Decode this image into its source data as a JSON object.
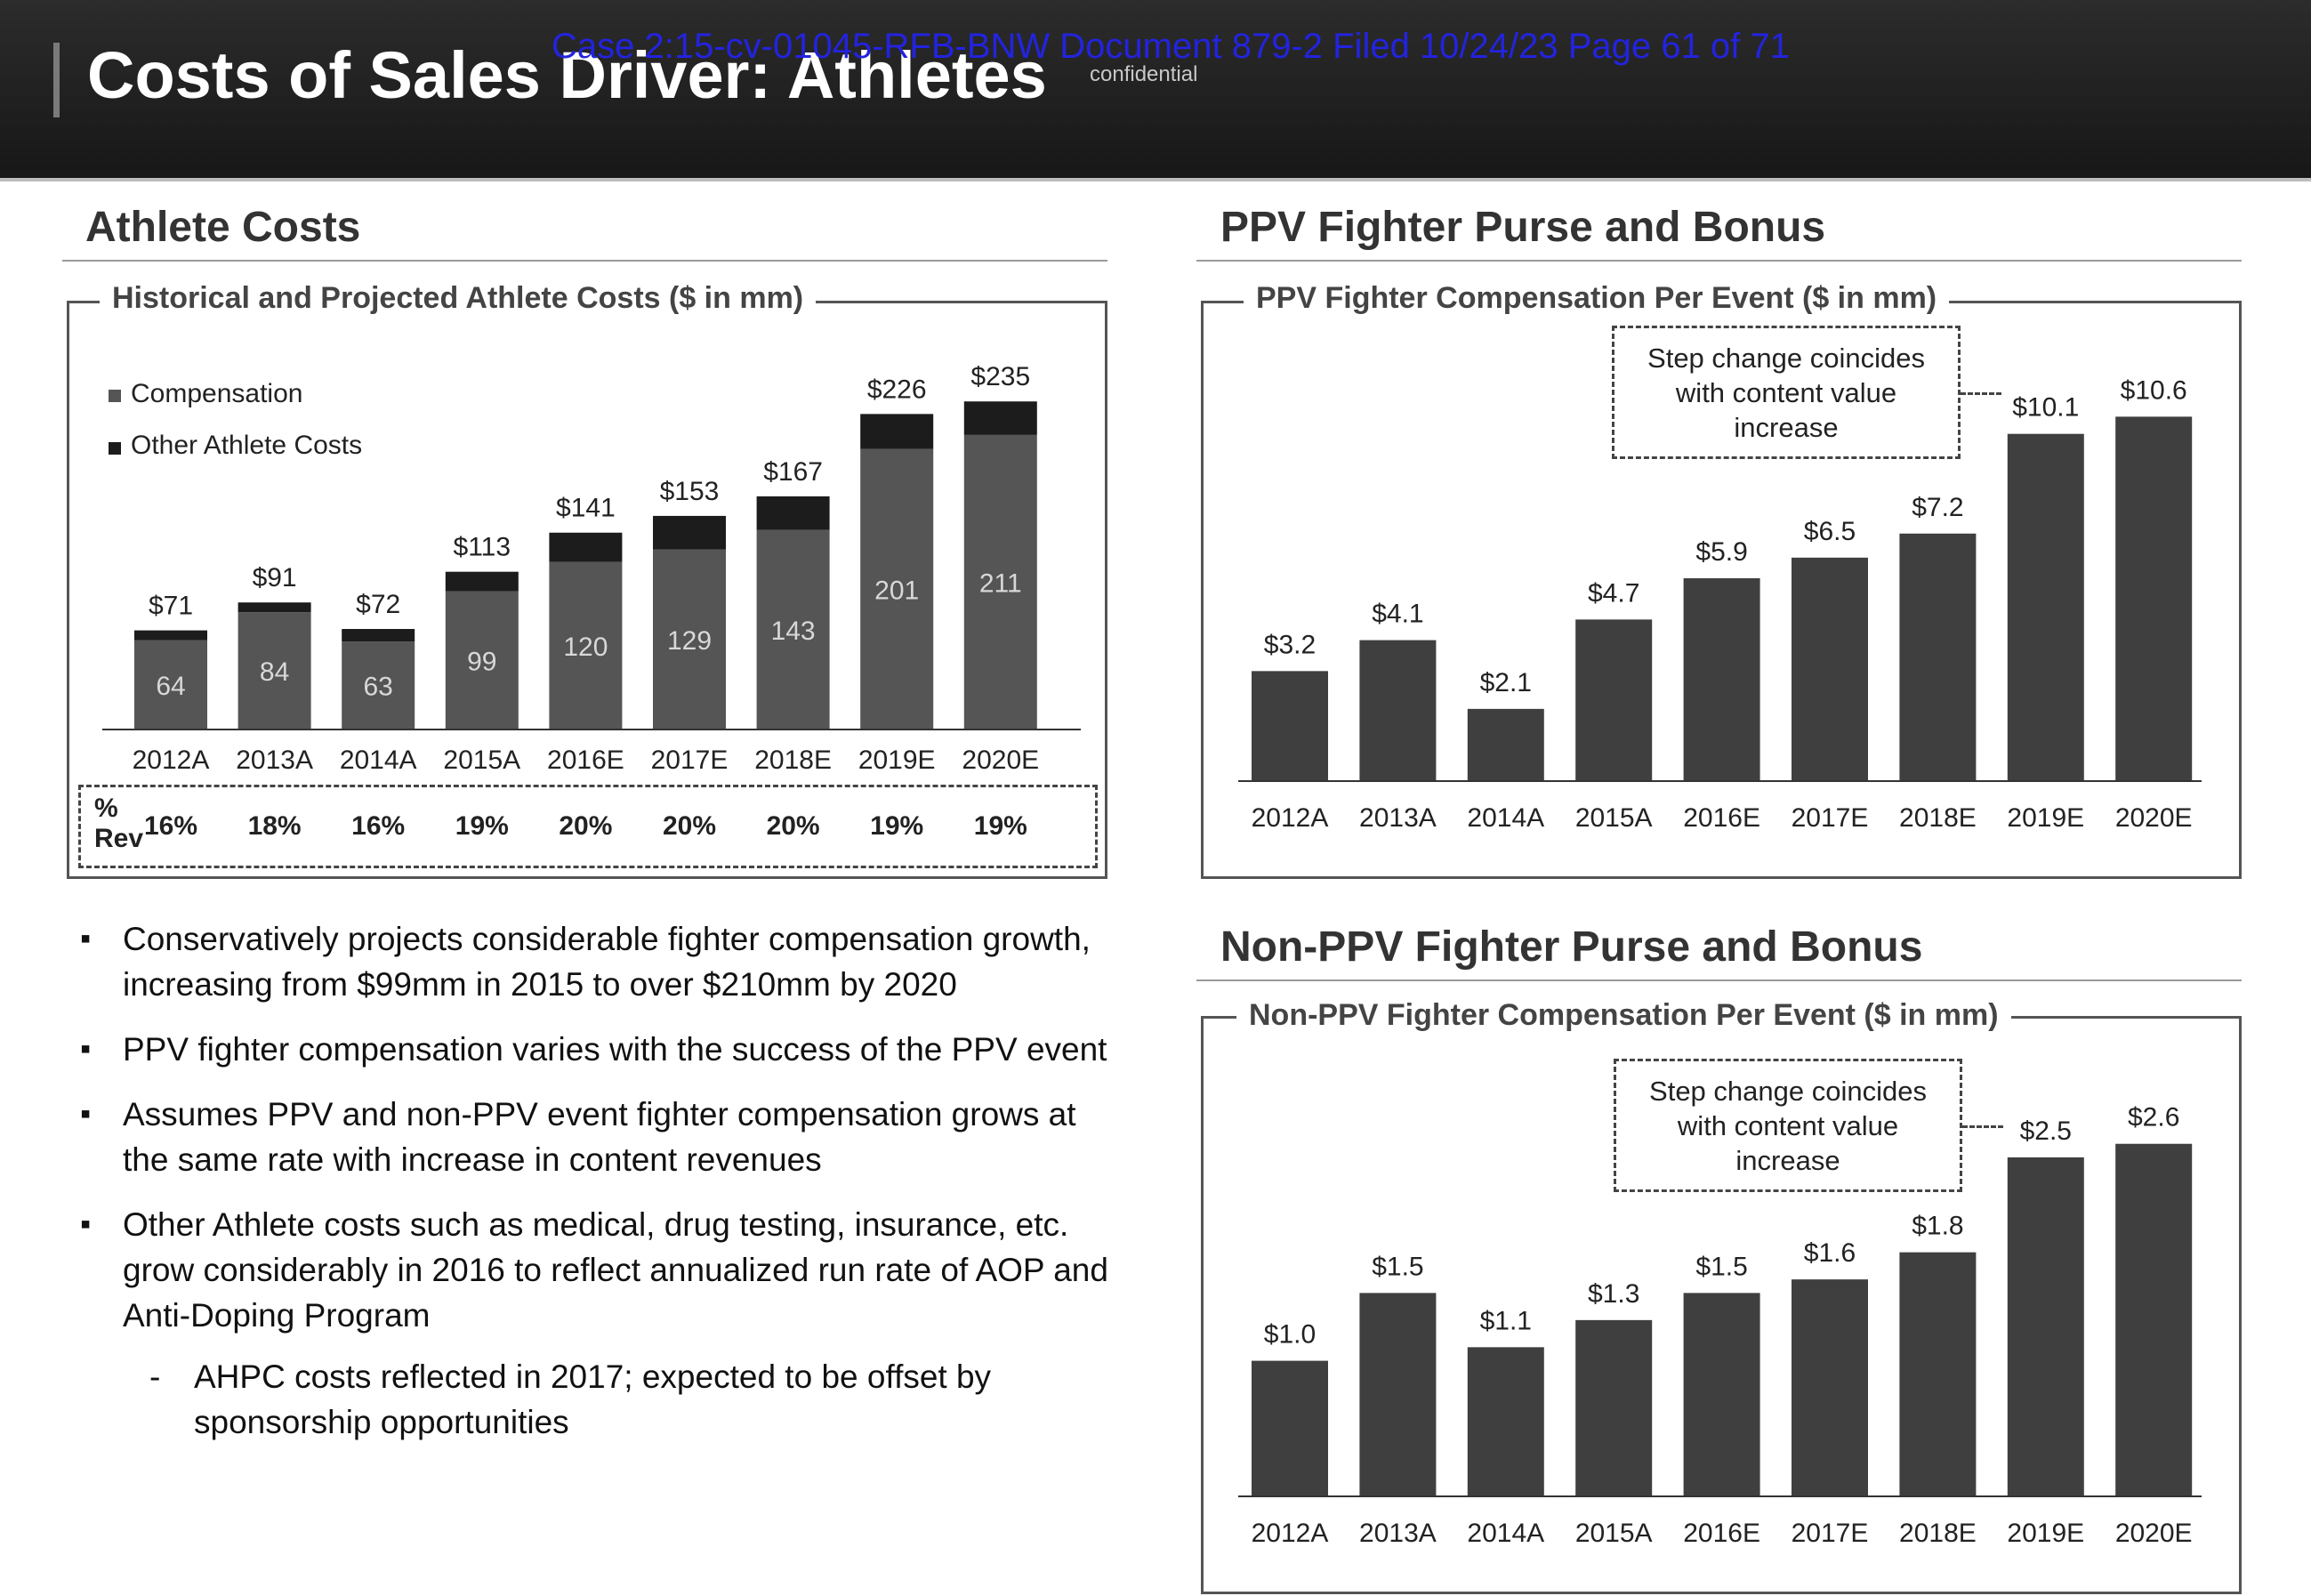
{
  "header": {
    "title": "Costs of Sales Driver: Athletes",
    "stamp": "Case 2:15-cv-01045-RFB-BNW   Document 879-2   Filed 10/24/23   Page 61 of 71",
    "confidential": "confidential"
  },
  "left_section": {
    "title": "Athlete Costs",
    "box_title": "Historical and Projected Athlete Costs ($ in mm)",
    "rev_label_1": "%",
    "rev_label_2": "Rev",
    "rev_pct": [
      "16%",
      "18%",
      "16%",
      "19%",
      "20%",
      "20%",
      "20%",
      "19%",
      "19%"
    ]
  },
  "ppv_section": {
    "title": "PPV Fighter Purse and Bonus",
    "box_title": "PPV Fighter Compensation Per Event ($ in mm)",
    "note_line1": "Step change coincides",
    "note_line2": "with content value",
    "note_line3": "increase"
  },
  "nonppv_section": {
    "title": "Non-PPV Fighter Purse and Bonus",
    "box_title": "Non-PPV Fighter Compensation Per Event ($ in mm)",
    "note_line1": "Step change coincides",
    "note_line2": "with content value",
    "note_line3": "increase"
  },
  "bullets": [
    "Conservatively projects considerable fighter compensation growth, increasing from $99mm in 2015 to over $210mm by 2020",
    "PPV fighter compensation varies with the success of the PPV event",
    "Assumes PPV and non-PPV event fighter compensation grows at the same rate with increase in content revenues",
    "Other Athlete costs such as medical, drug testing, insurance, etc. grow considerably in 2016 to reflect annualized run rate of AOP and Anti-Doping Program"
  ],
  "sub_bullet": "AHPC costs reflected in 2017; expected to be offset by sponsorship opportunities",
  "colors": {
    "compensation": "#555555",
    "other": "#1c1c1c",
    "bar": "#3f3f3f"
  },
  "chart_data": [
    {
      "type": "bar",
      "stacked": true,
      "title": "Historical and Projected Athlete Costs ($ in mm)",
      "categories": [
        "2012A",
        "2013A",
        "2014A",
        "2015A",
        "2016E",
        "2017E",
        "2018E",
        "2019E",
        "2020E"
      ],
      "series": [
        {
          "name": "Compensation",
          "values": [
            64,
            84,
            63,
            99,
            120,
            129,
            143,
            201,
            211
          ]
        },
        {
          "name": "Other Athlete Costs",
          "values": [
            7,
            7,
            9,
            14,
            21,
            24,
            24,
            25,
            24
          ]
        }
      ],
      "totals": [
        "$71",
        "$91",
        "$72",
        "$113",
        "$141",
        "$153",
        "$167",
        "$226",
        "$235"
      ],
      "ylim": [
        0,
        260
      ],
      "legend": "top-left"
    },
    {
      "type": "bar",
      "title": "PPV Fighter Compensation Per Event ($ in mm)",
      "categories": [
        "2012A",
        "2013A",
        "2014A",
        "2015A",
        "2016E",
        "2017E",
        "2018E",
        "2019E",
        "2020E"
      ],
      "values": [
        3.2,
        4.1,
        2.1,
        4.7,
        5.9,
        6.5,
        7.2,
        10.1,
        10.6
      ],
      "labels": [
        "$3.2",
        "$4.1",
        "$2.1",
        "$4.7",
        "$5.9",
        "$6.5",
        "$7.2",
        "$10.1",
        "$10.6"
      ],
      "ylim": [
        0,
        11.8
      ]
    },
    {
      "type": "bar",
      "title": "Non-PPV Fighter Compensation Per Event ($ in mm)",
      "categories": [
        "2012A",
        "2013A",
        "2014A",
        "2015A",
        "2016E",
        "2017E",
        "2018E",
        "2019E",
        "2020E"
      ],
      "values": [
        1.0,
        1.5,
        1.1,
        1.3,
        1.5,
        1.6,
        1.8,
        2.5,
        2.6
      ],
      "labels": [
        "$1.0",
        "$1.5",
        "$1.1",
        "$1.3",
        "$1.5",
        "$1.6",
        "$1.8",
        "$2.5",
        "$2.6"
      ],
      "ylim": [
        0,
        2.9
      ]
    }
  ]
}
